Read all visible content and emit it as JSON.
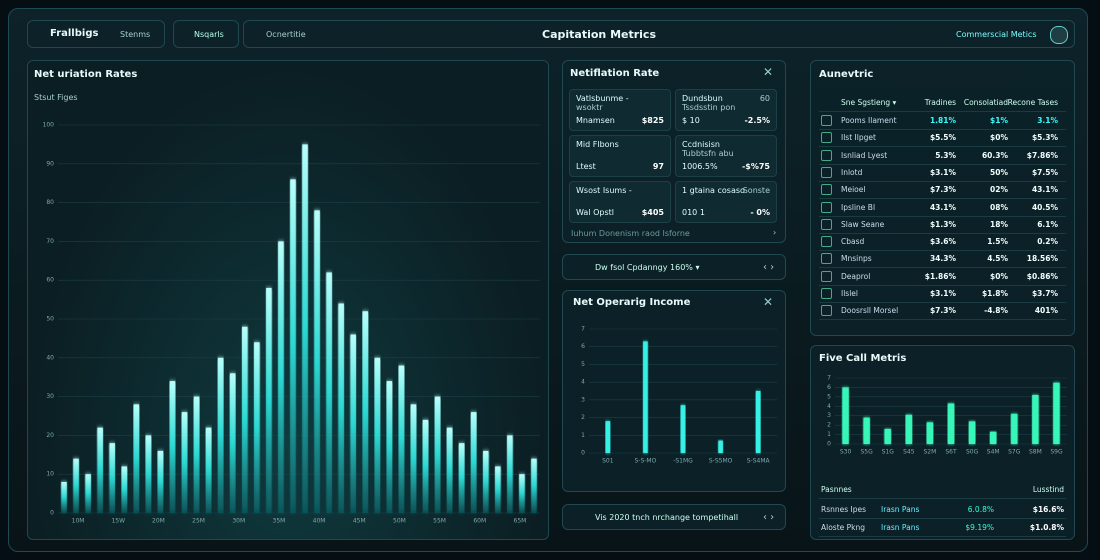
{
  "header": {
    "tabs": [
      "Frallbigs",
      "Stenms",
      "Nsqarls",
      "Ocnertitie"
    ],
    "title": "Capitation Metrics",
    "button": "Commerscial Metics"
  },
  "left_panel": {
    "title": "Net uriation Rates",
    "subtitle": "Stsut Figes",
    "chart": {
      "type": "bar",
      "color": "#2ee6e0",
      "values": [
        8,
        14,
        10,
        22,
        18,
        12,
        28,
        20,
        16,
        34,
        26,
        30,
        22,
        40,
        36,
        48,
        44,
        58,
        70,
        86,
        95,
        78,
        62,
        54,
        46,
        52,
        40,
        34,
        38,
        28,
        24,
        30,
        22,
        18,
        26,
        16,
        12,
        20,
        10,
        14
      ],
      "ylim": [
        0,
        100
      ],
      "yticks": [
        0,
        10,
        20,
        30,
        40,
        50,
        60,
        70,
        80,
        90,
        100
      ],
      "xlabels": [
        "10M",
        "15W",
        "20M",
        "25M",
        "30M",
        "35M",
        "40M",
        "45M",
        "50M",
        "55M",
        "60M",
        "65M"
      ]
    }
  },
  "rate_panel": {
    "title": "Netiflation Rate",
    "cards": [
      {
        "title": "Vatlsbunme -",
        "subtitle": "wsoktr",
        "label": "Mnamsen",
        "value": "$825"
      },
      {
        "title": "Dundsbun",
        "subtitle": "Tssdsstin pon",
        "badge": "60",
        "label": "$ 10",
        "value": "-2.5%"
      },
      {
        "title": "Mid Flbons",
        "label": "Ltest",
        "value": "97"
      },
      {
        "title": "Ccdnisisn",
        "subtitle": "Tubbtsfn abu",
        "label": "1006.5%",
        "value": "-$%75"
      },
      {
        "title": "Wsost Isums -",
        "label": "Wal Opstl",
        "value": "$405"
      },
      {
        "title": "1 gtaina cosaso",
        "badge": "Sonste",
        "label": "010 1",
        "value": "- 0%"
      }
    ],
    "footer": "Iuhum Donenism raod Isforne"
  },
  "select_row": "Dw fsol Cpdanngy 160% ▾",
  "income_panel": {
    "title": "Net Operarig Income",
    "chart": {
      "type": "bar",
      "color": "#34f0e4",
      "values": [
        1.8,
        6.3,
        2.7,
        0.7,
        3.5
      ],
      "ylim": [
        0,
        7
      ],
      "yticks": [
        0,
        1,
        2,
        3,
        4,
        5,
        6,
        7
      ],
      "xlabels": [
        "S01",
        "S-S-MO",
        "-S1MG",
        "S-S5MO",
        "S-S4MA"
      ]
    }
  },
  "bottom_row": "Vis 2020 tnch nrchange tompetihall",
  "table_panel": {
    "title": "Aunevtric",
    "columns": [
      "Sne Sgstieng ▾",
      "Tradines",
      "Consolatiad",
      "Recone Tases"
    ],
    "rows": [
      [
        "Pooms Ilament",
        "1.81%",
        "$1%",
        "3.1%"
      ],
      [
        "Ilst Ilpget",
        "$5.5%",
        "$0%",
        "$5.3%"
      ],
      [
        "Isnliad Lyest",
        "5.3%",
        "60.3%",
        "$7.86%"
      ],
      [
        "Inlotd",
        "$3.1%",
        "50%",
        "$7.5%"
      ],
      [
        "Meioel",
        "$7.3%",
        "02%",
        "43.1%"
      ],
      [
        "Ipsline Bl",
        "43.1%",
        "08%",
        "40.5%"
      ],
      [
        "Slaw Seane",
        "$1.3%",
        "18%",
        "6.1%"
      ],
      [
        "Cbasd",
        "$3.6%",
        "1.5%",
        "0.2%"
      ],
      [
        "Mnsinps",
        "34.3%",
        "4.5%",
        "18.56%"
      ],
      [
        "Deaprol",
        "$1.86%",
        "$0%",
        "$0.86%"
      ],
      [
        "Ilslel",
        "$3.1%",
        "$1.8%",
        "$3.7%"
      ],
      [
        "Doosrsll Morsel",
        "$7.3%",
        "-4.8%",
        "401%"
      ]
    ]
  },
  "five_panel": {
    "title": "Five Call Metris",
    "chart": {
      "type": "bar",
      "color": "#39f5b8",
      "values": [
        6.0,
        2.8,
        1.6,
        3.1,
        2.3,
        4.3,
        2.4,
        1.3,
        3.2,
        5.2,
        6.5
      ],
      "ylim": [
        0,
        7
      ],
      "yticks": [
        0,
        1,
        2,
        3,
        4,
        5,
        6,
        7
      ],
      "xlabels": [
        "S30",
        "S5G",
        "S1G",
        "S45",
        "S2M",
        "S6T",
        "S0G",
        "S4M",
        "S7G",
        "S8M",
        "S9G"
      ]
    },
    "header": [
      "Pasnnes",
      "Lusstind"
    ],
    "rows": [
      [
        "Rsnnes Ipes",
        "Irasn Pans",
        "6.0.8%",
        "$16.6%"
      ],
      [
        "Aloste Pkng",
        "Irasn Pans",
        "$9.19%",
        "$1.0.8%"
      ]
    ]
  }
}
